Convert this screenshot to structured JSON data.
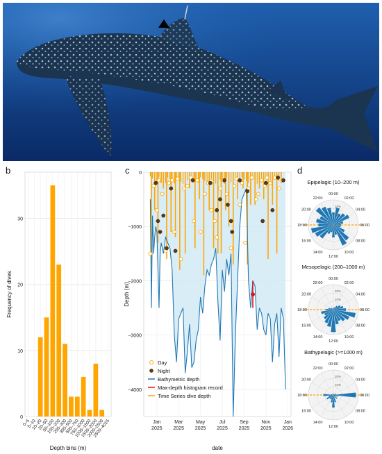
{
  "panels": {
    "a": "a",
    "b": "b",
    "c": "c",
    "d": "d"
  },
  "colors": {
    "bar": "#FFA500",
    "bar_highlight": "#D7191C",
    "bathy": "#1F78B4",
    "maxdepth": "#D7191C",
    "timeseries": "#FFA500",
    "fill": "#CFE8F5",
    "polar_bar": "#1F78B4",
    "night_point": "#5A3A12",
    "ocean_top": "#1f5fae",
    "ocean_bottom": "#0a2a66"
  },
  "photo": {
    "marker_icon": "triangle-tag-marker"
  },
  "chart_data": [
    {
      "type": "bar",
      "id": "depth-histogram",
      "xlabel": "Depth bins (m)",
      "ylabel": "Frequency of dives",
      "categories": [
        "0–5",
        "5–10",
        "10–20",
        "20–50",
        "50–100",
        "100–200",
        "200–300",
        "300–500",
        "500–750",
        "750–1000",
        "1000–1500",
        "1500–2000",
        "2000–2500",
        "2500–4015"
      ],
      "values": [
        0,
        0,
        12,
        15,
        35,
        23,
        11,
        3,
        3,
        6,
        1,
        8,
        1,
        0
      ],
      "highlight_values": [
        0,
        0,
        0,
        0,
        0,
        0,
        0,
        0,
        0,
        0,
        0,
        0,
        0,
        1
      ],
      "yticks": [
        0,
        10,
        20,
        30
      ],
      "ylim": [
        0,
        37
      ]
    },
    {
      "type": "line",
      "id": "depth-timeseries",
      "xlabel": "date",
      "ylabel": "Depth (m)",
      "xtick_labels": [
        [
          "Jan",
          "2025"
        ],
        [
          "Mar",
          "2025"
        ],
        [
          "May",
          "2025"
        ],
        [
          "Jul",
          "2025"
        ],
        [
          "Sep",
          "2025"
        ],
        [
          "Nov",
          "2025"
        ],
        [
          "Jan",
          "2026"
        ]
      ],
      "yticks": [
        0,
        -1000,
        -2000,
        -3000,
        -4000
      ],
      "ytick_labels": [
        "0",
        "−1000",
        "−2000",
        "−3000",
        "−4000"
      ],
      "ylim": [
        -4500,
        0
      ],
      "xlim_months": [
        -1.2,
        12.3
      ],
      "legend": [
        "Day",
        "Night",
        "Bathymetric depth",
        "Max-depth histogram record",
        "Time Series dive depth"
      ],
      "bathymetry": {
        "x": [
          -0.6,
          -0.5,
          -0.4,
          -0.3,
          -0.2,
          -0.1,
          0.0,
          0.1,
          0.2,
          0.3,
          0.4,
          0.6,
          0.8,
          1.0,
          1.2,
          1.4,
          1.6,
          1.8,
          2.0,
          2.2,
          2.4,
          2.6,
          2.8,
          3.0,
          3.2,
          3.4,
          3.6,
          3.8,
          4.0,
          4.2,
          4.4,
          4.6,
          4.8,
          5.0,
          5.2,
          5.4,
          5.6,
          5.8,
          6.0,
          6.2,
          6.4,
          6.6,
          6.8,
          7.0,
          7.2,
          7.4,
          7.6,
          7.8,
          8.0,
          8.2,
          8.4,
          8.6,
          8.8,
          9.0,
          9.2,
          9.4,
          9.6,
          9.8,
          10.0,
          10.2,
          10.4,
          10.6,
          10.8,
          11.0,
          11.2,
          11.4,
          11.6,
          11.8
        ],
        "y": [
          -500,
          -2500,
          -800,
          -1500,
          -1200,
          -1000,
          -1100,
          -1800,
          -2500,
          -1500,
          -1300,
          -1500,
          -1200,
          -1300,
          -1400,
          -1800,
          -3000,
          -3500,
          -2700,
          -2600,
          -2500,
          -3700,
          -3300,
          -2800,
          -3600,
          -3500,
          -3100,
          -2900,
          -2300,
          -2600,
          -2100,
          -1800,
          -1900,
          -1700,
          -1600,
          -1400,
          -2400,
          -3100,
          -1800,
          -2200,
          -1600,
          -1900,
          -1500,
          -4500,
          -3000,
          -2000,
          -1000,
          -500,
          -400,
          -300,
          -2000,
          -2500,
          -2000,
          -2100,
          -2900,
          -2500,
          -2600,
          -2900,
          -3000,
          -2600,
          -2700,
          -3500,
          -2800,
          -2600,
          -3400,
          -2500,
          -2700,
          -4000
        ]
      },
      "max_depth_record": {
        "x": 8.8,
        "y_top": -2000,
        "y_bottom": -2500,
        "point": -2250
      },
      "time_series_dives": {
        "x": [
          -0.5,
          -0.2,
          0.1,
          0.4,
          0.6,
          0.9,
          1.3,
          1.7,
          2.1,
          2.6,
          3.0,
          3.5,
          3.9,
          4.3,
          4.8,
          5.2,
          5.6,
          5.9,
          6.3,
          6.6,
          7.0,
          7.4,
          7.9,
          8.3,
          8.6,
          9.0,
          9.4,
          9.8,
          10.2,
          10.6,
          11.0,
          11.4
        ],
        "y": [
          -1700,
          -700,
          -1300,
          -200,
          -300,
          -1600,
          -1100,
          -1200,
          -1800,
          -1500,
          -300,
          -1400,
          -500,
          -1900,
          -700,
          -1400,
          -1500,
          -1500,
          -700,
          -1000,
          -1700,
          -500,
          -300,
          -1700,
          -600,
          -600,
          -300,
          -500,
          -1600,
          -600,
          -1500,
          -200
        ]
      },
      "day_points": {
        "x": [
          -0.6,
          -0.3,
          0.0,
          0.2,
          0.5,
          0.8,
          1.1,
          1.4,
          1.6,
          1.9,
          2.2,
          2.5,
          2.8,
          3.1,
          3.4,
          3.7,
          4.0,
          4.4,
          4.7,
          5.0,
          5.3,
          5.5,
          5.8,
          6.1,
          6.4,
          6.8,
          7.1,
          7.3,
          7.6,
          7.8,
          8.1,
          8.4,
          8.7,
          9.1,
          9.3,
          9.6,
          9.9,
          10.1,
          10.4,
          10.8,
          11.2,
          11.5
        ],
        "y": [
          -1500,
          -250,
          -700,
          -150,
          -400,
          -1450,
          -200,
          -150,
          -1100,
          -120,
          -1600,
          -300,
          -250,
          -100,
          -900,
          -150,
          -1100,
          -400,
          -200,
          -700,
          -900,
          -1200,
          -300,
          -150,
          -400,
          -1400,
          -250,
          -120,
          -600,
          -200,
          -1300,
          -300,
          -100,
          -500,
          -400,
          -150,
          -250,
          -100,
          -200,
          -100,
          -300,
          -150
        ]
      },
      "night_points": {
        "x": [
          -0.1,
          0.1,
          0.3,
          0.6,
          0.9,
          1.3,
          1.7,
          3.3,
          4.9,
          5.5,
          5.8,
          6.2,
          6.5,
          6.8,
          6.9,
          7.6,
          8.3,
          9.7,
          10.0,
          10.6,
          11.1,
          11.6
        ],
        "y": [
          -200,
          -900,
          -1100,
          -800,
          -1400,
          -300,
          -1450,
          -150,
          -200,
          -700,
          -500,
          -150,
          -600,
          -900,
          -1100,
          -150,
          -350,
          -900,
          -200,
          -700,
          -100,
          -150
        ]
      }
    },
    {
      "type": "bar",
      "subtype": "polar",
      "id": "polar-epipelagic",
      "title": "Epipelagic (10–200 m)",
      "hours": [
        "00:00",
        "02:00",
        "04:00",
        "06:00",
        "08:00",
        "10:00",
        "12:00",
        "14:00",
        "16:00",
        "18:00",
        "20:00",
        "22:00"
      ],
      "ring_labels": [
        "5%",
        "10%"
      ],
      "values": [
        0.5,
        0.7,
        0.5,
        0.6,
        0.7,
        0.4,
        0.3,
        0.3,
        0.5,
        0.8,
        0.9,
        0.4,
        0.5,
        0.3,
        0.4,
        0.7,
        0.8,
        0.9,
        0.6,
        0.7,
        0.6,
        0.9,
        0.8,
        0.7
      ],
      "night_band": [
        18,
        6
      ]
    },
    {
      "type": "bar",
      "subtype": "polar",
      "id": "polar-mesopelagic",
      "title": "Mesopelagic (200–1000 m)",
      "hours": [
        "00:00",
        "02:00",
        "04:00",
        "06:00",
        "08:00",
        "10:00",
        "12:00",
        "14:00",
        "16:00",
        "18:00",
        "20:00",
        "22:00"
      ],
      "ring_labels": [
        "10%",
        "20%"
      ],
      "values": [
        0.05,
        0.1,
        0.1,
        0.2,
        0.3,
        0.4,
        0.5,
        0.9,
        0.7,
        0.6,
        0.5,
        0.6,
        0.9,
        0.7,
        0.6,
        0.5,
        0.4,
        0.5,
        0.3,
        0.2,
        0.1,
        0.1,
        0.05,
        0.05
      ],
      "night_band": [
        18,
        6
      ]
    },
    {
      "type": "bar",
      "subtype": "polar",
      "id": "polar-bathypelagic",
      "title": "Bathypelagic (>=1000 m)",
      "hours": [
        "00:00",
        "02:00",
        "04:00",
        "06:00",
        "08:00",
        "10:00",
        "12:00",
        "14:00",
        "16:00",
        "18:00",
        "20:00",
        "22:00"
      ],
      "ring_labels": [
        "10%",
        "20%"
      ],
      "values": [
        0.05,
        0.05,
        0.05,
        0.05,
        0.1,
        0.1,
        0.9,
        0.2,
        0.1,
        0.2,
        0.1,
        0.3,
        0.5,
        0.3,
        0.2,
        0.2,
        0.3,
        0.2,
        0.4,
        0.1,
        0.05,
        0.05,
        0.05,
        0.05
      ],
      "night_band": [
        18,
        6
      ]
    }
  ]
}
